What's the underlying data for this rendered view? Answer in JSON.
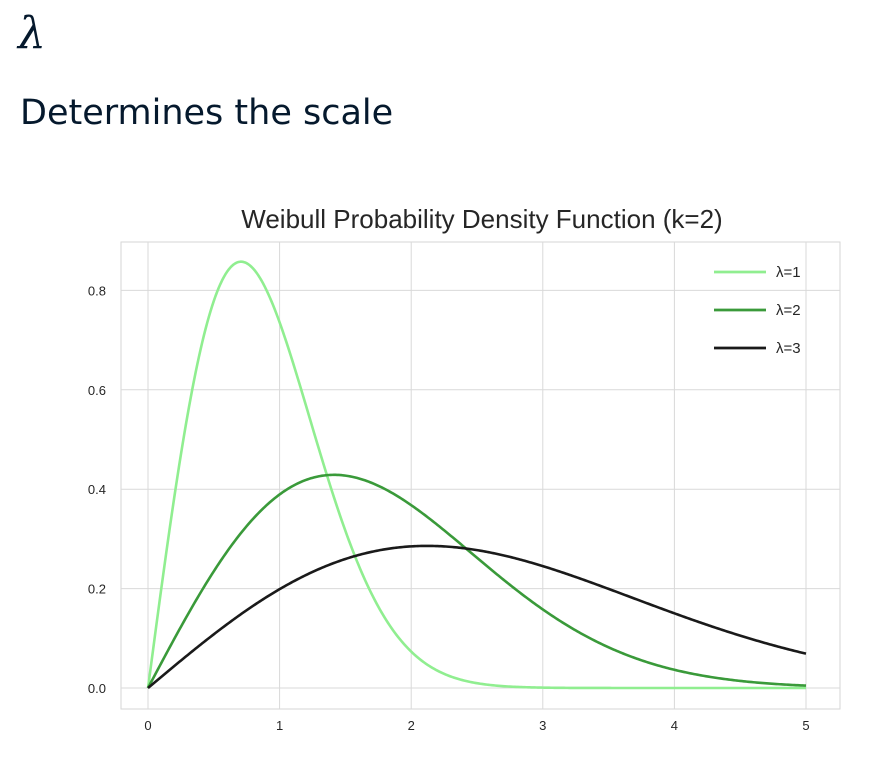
{
  "header": {
    "symbol": "λ",
    "subtitle": "Determines the scale"
  },
  "chart_data": {
    "type": "line",
    "title": "Weibull Probability Density Function (k=2)",
    "xlabel": "",
    "ylabel": "",
    "xlim": [
      -0.2,
      5.22
    ],
    "ylim": [
      -0.04,
      0.9
    ],
    "x_ticks": [
      0,
      1,
      2,
      3,
      4,
      5
    ],
    "y_ticks": [
      0.0,
      0.2,
      0.4,
      0.6,
      0.8
    ],
    "x_tick_labels": [
      "0",
      "1",
      "2",
      "3",
      "4",
      "5"
    ],
    "y_tick_labels": [
      "0.0",
      "0.2",
      "0.4",
      "0.6",
      "0.8"
    ],
    "grid": true,
    "legend_position": "top-right",
    "k": 2,
    "x": [
      0,
      0.25,
      0.5,
      0.75,
      1.0,
      1.25,
      1.5,
      1.75,
      2.0,
      2.25,
      2.5,
      2.75,
      3.0,
      3.25,
      3.5,
      3.75,
      4.0,
      4.25,
      4.5,
      4.75,
      5.0
    ],
    "series": [
      {
        "name": "λ=1",
        "lambda": 1,
        "color": "#90ee90",
        "values": [
          0,
          0.47,
          0.779,
          0.855,
          0.736,
          0.524,
          0.316,
          0.163,
          0.073,
          0.028,
          0.01,
          0.003,
          0.001,
          0.0,
          0.0,
          0.0,
          0.0,
          0.0,
          0.0,
          0.0,
          0.0
        ]
      },
      {
        "name": "λ=2",
        "lambda": 2,
        "color": "#3a9a3a",
        "values": [
          0,
          0.124,
          0.235,
          0.324,
          0.389,
          0.424,
          0.428,
          0.406,
          0.368,
          0.318,
          0.262,
          0.207,
          0.158,
          0.116,
          0.082,
          0.056,
          0.037,
          0.023,
          0.014,
          0.008,
          0.005
        ]
      },
      {
        "name": "λ=3",
        "lambda": 3,
        "color": "#1a1a1a",
        "values": [
          0,
          0.055,
          0.108,
          0.157,
          0.199,
          0.235,
          0.262,
          0.28,
          0.285,
          0.285,
          0.279,
          0.265,
          0.245,
          0.222,
          0.2,
          0.176,
          0.152,
          0.129,
          0.108,
          0.088,
          0.07
        ]
      }
    ]
  }
}
